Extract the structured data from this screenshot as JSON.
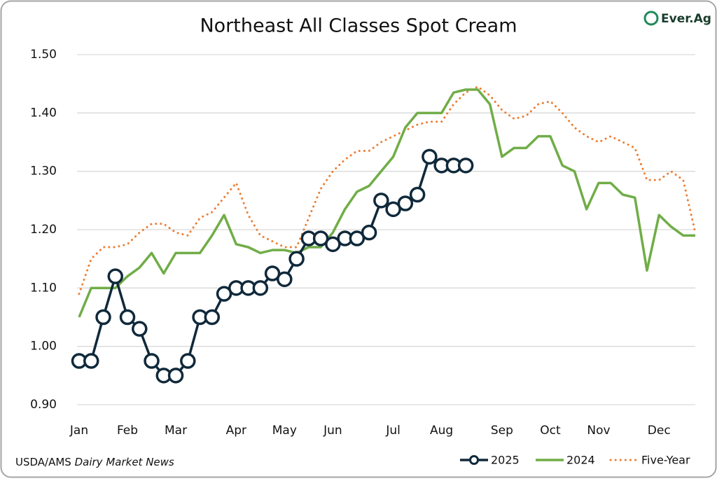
{
  "chart_data": {
    "type": "line",
    "title": "Northeast All Classes Spot Cream",
    "logo": "Ever.Ag",
    "source": "USDA/AMS",
    "source_italic": "Dairy Market News",
    "categories": [
      "Jan",
      null,
      null,
      null,
      "Feb",
      null,
      null,
      null,
      "Mar",
      null,
      null,
      null,
      null,
      "Apr",
      null,
      null,
      null,
      "May",
      null,
      null,
      null,
      "Jun",
      null,
      null,
      null,
      null,
      "Jul",
      null,
      null,
      null,
      "Aug",
      null,
      null,
      null,
      null,
      "Sep",
      null,
      null,
      null,
      "Oct",
      null,
      null,
      null,
      "Nov",
      null,
      null,
      null,
      null,
      "Dec",
      null,
      null,
      null
    ],
    "series": [
      {
        "name": "2025",
        "color": "#10293b",
        "style": "markers",
        "values": [
          0.975,
          0.975,
          1.05,
          1.12,
          1.05,
          1.03,
          0.975,
          0.95,
          0.95,
          0.975,
          1.05,
          1.05,
          1.09,
          1.1,
          1.1,
          1.1,
          1.125,
          1.115,
          1.15,
          1.185,
          1.185,
          1.175,
          1.185,
          1.185,
          1.195,
          1.25,
          1.235,
          1.245,
          1.26,
          1.325,
          1.31,
          1.31,
          1.31,
          null,
          null,
          null,
          null,
          null,
          null,
          null,
          null,
          null,
          null,
          null,
          null,
          null,
          null,
          null,
          null,
          null,
          null,
          null
        ]
      },
      {
        "name": "2024",
        "color": "#70ad47",
        "style": "solid",
        "values": [
          1.05,
          1.1,
          1.1,
          1.1,
          1.12,
          1.135,
          1.16,
          1.125,
          1.16,
          1.16,
          1.16,
          1.19,
          1.225,
          1.175,
          1.17,
          1.16,
          1.165,
          1.165,
          1.16,
          1.17,
          1.17,
          1.195,
          1.235,
          1.265,
          1.275,
          1.3,
          1.325,
          1.375,
          1.4,
          1.4,
          1.4,
          1.435,
          1.44,
          1.44,
          1.415,
          1.325,
          1.34,
          1.34,
          1.36,
          1.36,
          1.31,
          1.3,
          1.235,
          1.28,
          1.28,
          1.26,
          1.255,
          1.13,
          1.225,
          1.205,
          1.19,
          1.19
        ]
      },
      {
        "name": "Five-Year",
        "color": "#ed7d31",
        "style": "dotted",
        "values": [
          1.09,
          1.15,
          1.17,
          1.17,
          1.175,
          1.195,
          1.21,
          1.21,
          1.195,
          1.19,
          1.22,
          1.23,
          1.255,
          1.28,
          1.225,
          1.19,
          1.18,
          1.17,
          1.17,
          1.22,
          1.27,
          1.3,
          1.32,
          1.335,
          1.335,
          1.35,
          1.36,
          1.37,
          1.38,
          1.385,
          1.385,
          1.415,
          1.435,
          1.445,
          1.43,
          1.405,
          1.39,
          1.395,
          1.415,
          1.42,
          1.4,
          1.375,
          1.36,
          1.35,
          1.36,
          1.35,
          1.34,
          1.285,
          1.285,
          1.3,
          1.285,
          1.195
        ]
      }
    ],
    "ylim": [
      0.9,
      1.5
    ],
    "yticks": [
      {
        "value": 0.9,
        "label": "0.90"
      },
      {
        "value": 1.0,
        "label": "1.00"
      },
      {
        "value": 1.1,
        "label": "1.10"
      },
      {
        "value": 1.2,
        "label": "1.20"
      },
      {
        "value": 1.3,
        "label": "1.30"
      },
      {
        "value": 1.4,
        "label": "1.40"
      },
      {
        "value": 1.5,
        "label": "1.50"
      }
    ],
    "grid": true,
    "legend": "bottom-right"
  }
}
